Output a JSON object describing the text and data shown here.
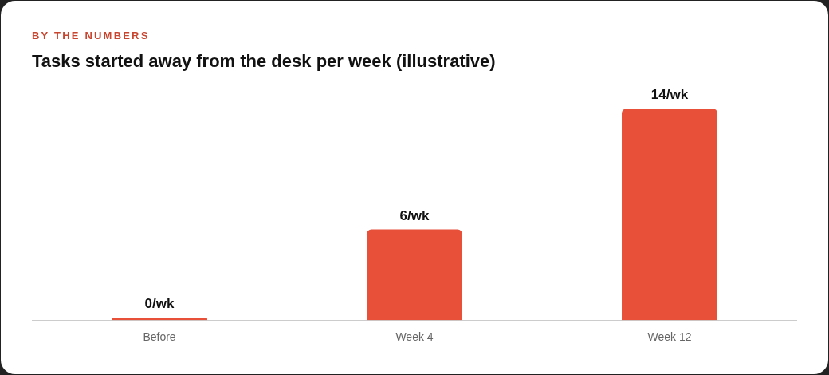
{
  "chart_data": {
    "type": "bar",
    "subtitle": "BY THE NUMBERS",
    "title": "Tasks started away from the desk per week (illustrative)",
    "categories": [
      "Before",
      "Week 4",
      "Week 12"
    ],
    "values": [
      0,
      6,
      14
    ],
    "color": "#e8503a",
    "value_labels": [
      "0/wk",
      "6/wk",
      "14/wk"
    ],
    "grid": false,
    "legend": false
  }
}
